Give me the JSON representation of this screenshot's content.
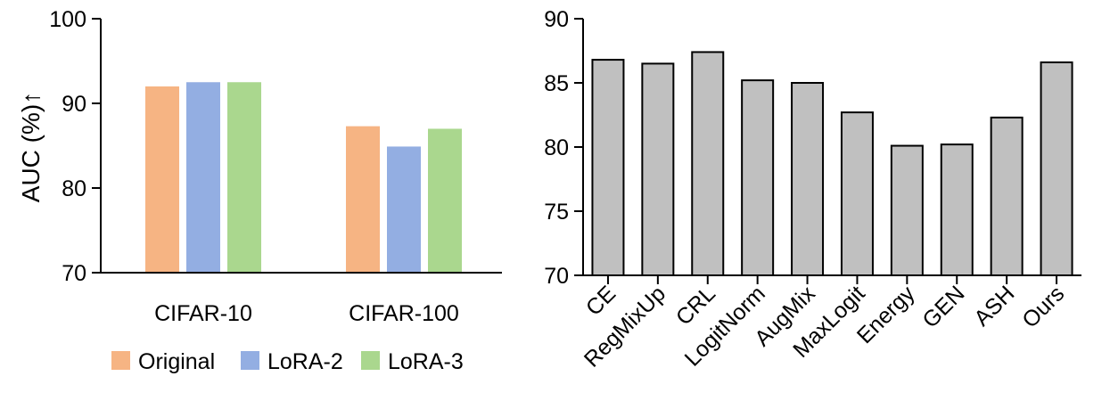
{
  "chart_data": [
    {
      "type": "bar",
      "title": "",
      "xlabel": "",
      "ylabel": "AUC (%)↑",
      "ylim": [
        70,
        100
      ],
      "yticks": [
        70,
        80,
        90,
        100
      ],
      "grid": false,
      "legend_position": "bottom",
      "categories": [
        "CIFAR-10",
        "CIFAR-100"
      ],
      "series": [
        {
          "name": "Original",
          "color": "#F6B483",
          "values": [
            92.0,
            87.3
          ]
        },
        {
          "name": "LoRA-2",
          "color": "#93AEE2",
          "values": [
            92.5,
            84.9
          ]
        },
        {
          "name": "LoRA-3",
          "color": "#AAD78E",
          "values": [
            92.5,
            87.0
          ]
        }
      ]
    },
    {
      "type": "bar",
      "title": "",
      "xlabel": "",
      "ylabel": "",
      "ylim": [
        70,
        90
      ],
      "yticks": [
        70,
        75,
        80,
        85,
        90
      ],
      "grid": false,
      "bar_color": "#C0C0C0",
      "bar_edge_color": "#000000",
      "categories": [
        "CE",
        "RegMixUp",
        "CRL",
        "LogitNorm",
        "AugMix",
        "MaxLogit",
        "Energy",
        "GEN",
        "ASH",
        "Ours"
      ],
      "values": [
        86.8,
        86.5,
        87.4,
        85.2,
        85.0,
        82.7,
        80.1,
        80.2,
        82.3,
        86.6
      ]
    }
  ]
}
